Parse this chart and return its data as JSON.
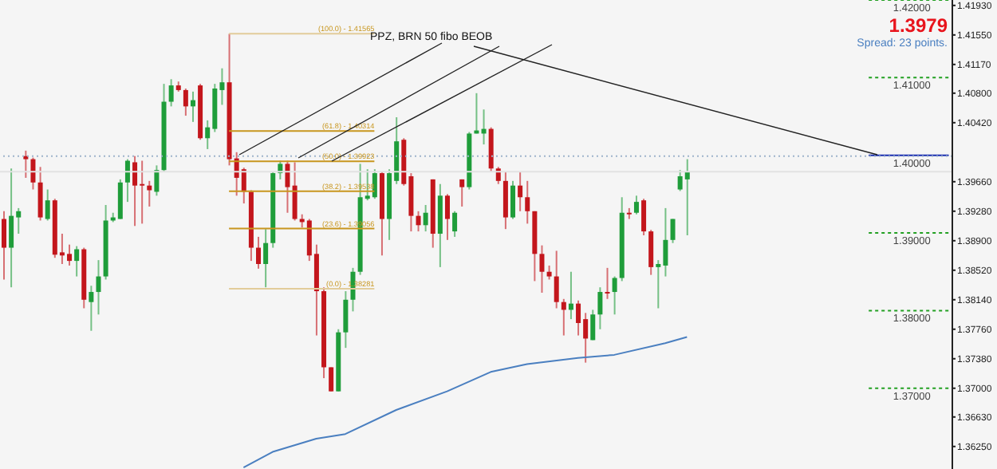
{
  "chart_data": {
    "type": "candlestick",
    "categories": [
      null,
      null,
      null,
      null,
      null,
      null,
      null,
      null,
      null,
      null,
      null,
      null,
      null,
      null,
      null,
      null,
      null,
      null,
      null,
      null,
      null,
      null,
      null,
      null,
      null,
      null,
      null,
      null,
      null,
      null,
      null,
      null,
      null,
      null,
      null,
      null,
      null,
      null,
      null,
      null,
      null,
      null,
      null,
      null,
      null,
      null,
      null,
      null,
      null,
      null,
      null,
      null,
      null,
      null,
      null,
      null,
      null,
      null,
      null,
      null,
      null,
      null,
      null,
      null,
      null,
      null,
      null,
      null,
      null,
      null,
      null,
      null,
      null,
      null,
      null,
      null,
      null,
      null,
      null,
      null,
      null,
      null,
      null,
      null,
      null,
      null,
      null,
      null,
      null,
      null,
      null,
      null,
      null,
      null,
      null,
      null,
      null,
      null,
      null,
      null,
      null,
      null,
      null,
      null,
      null,
      null,
      null,
      null,
      null,
      null,
      null,
      null,
      null,
      null,
      null,
      null,
      null,
      null,
      null,
      null,
      null,
      null,
      null,
      null,
      null,
      null,
      null,
      null,
      null,
      null,
      null
    ],
    "ohlc": [
      [
        1.3918,
        1.3928,
        1.384,
        1.3881
      ],
      [
        1.3881,
        1.3983,
        1.383,
        1.3922
      ],
      [
        1.392,
        1.3932,
        1.3899,
        1.3928
      ],
      [
        1.3999,
        1.4006,
        1.3971,
        1.3995
      ],
      [
        1.3995,
        1.3997,
        1.3956,
        1.3965
      ],
      [
        1.3965,
        1.3985,
        1.3916,
        1.392
      ],
      [
        1.3918,
        1.3956,
        1.3916,
        1.3942
      ],
      [
        1.3942,
        1.3944,
        1.3868,
        1.3872
      ],
      [
        1.3875,
        1.3899,
        1.386,
        1.3871
      ],
      [
        1.3873,
        1.3885,
        1.3858,
        1.3864
      ],
      [
        1.3864,
        1.3883,
        1.3844,
        1.3879
      ],
      [
        1.3879,
        1.3881,
        1.3803,
        1.3814
      ],
      [
        1.3811,
        1.3832,
        1.3774,
        1.3824
      ],
      [
        1.3824,
        1.3865,
        1.3795,
        1.3844
      ],
      [
        1.3844,
        1.3936,
        1.384,
        1.3916
      ],
      [
        1.3916,
        1.3926,
        1.3914,
        1.392
      ],
      [
        1.3918,
        1.3969,
        1.3918,
        1.3965
      ],
      [
        1.3965,
        1.3995,
        1.394,
        1.3993
      ],
      [
        1.3991,
        1.3999,
        1.3909,
        1.3961
      ],
      [
        1.3963,
        1.3993,
        1.3912,
        1.3961
      ],
      [
        1.3961,
        1.3967,
        1.3934,
        1.3955
      ],
      [
        1.3953,
        1.3987,
        1.3948,
        1.3981
      ],
      [
        1.3981,
        1.4092,
        1.3979,
        1.4069
      ],
      [
        1.4069,
        1.4098,
        1.4063,
        1.409
      ],
      [
        1.409,
        1.4095,
        1.4082,
        1.4084
      ],
      [
        1.4084,
        1.4086,
        1.4051,
        1.4063
      ],
      [
        1.4063,
        1.4082,
        1.4043,
        1.4071
      ],
      [
        1.409,
        1.4092,
        1.402,
        1.4022
      ],
      [
        1.4022,
        1.4045,
        1.4008,
        1.4036
      ],
      [
        1.4034,
        1.4092,
        1.403,
        1.4086
      ],
      [
        1.4084,
        1.4112,
        1.4065,
        1.4094
      ],
      [
        1.4094,
        1.41565,
        1.3987,
        1.3995
      ],
      [
        1.3996,
        1.4004,
        1.3948,
        1.3971
      ],
      [
        1.3982,
        1.3984,
        1.3938,
        1.3953
      ],
      [
        1.3953,
        1.3955,
        1.3864,
        1.3881
      ],
      [
        1.3881,
        1.3895,
        1.3854,
        1.386
      ],
      [
        1.386,
        1.3905,
        1.383,
        1.3887
      ],
      [
        1.3887,
        1.3979,
        1.3881,
        1.3977
      ],
      [
        1.3977,
        1.3993,
        1.3969,
        1.3989
      ],
      [
        1.3989,
        1.3993,
        1.3926,
        1.3959
      ],
      [
        1.3961,
        1.3991,
        1.3916,
        1.3918
      ],
      [
        1.3918,
        1.3924,
        1.3907,
        1.3914
      ],
      [
        1.3916,
        1.3918,
        1.3864,
        1.3871
      ],
      [
        1.3873,
        1.3885,
        1.3768,
        1.3825
      ],
      [
        1.3825,
        1.383,
        1.3713,
        1.3727
      ],
      [
        1.3727,
        1.3727,
        1.3696,
        1.3696
      ],
      [
        1.3696,
        1.3776,
        1.3696,
        1.3772
      ],
      [
        1.3772,
        1.3825,
        1.3752,
        1.3814
      ],
      [
        1.3814,
        1.3855,
        1.3799,
        1.385
      ],
      [
        1.385,
        1.3989,
        1.3846,
        1.3946
      ],
      [
        1.3944,
        1.3982,
        1.3942,
        1.3948
      ],
      [
        1.3946,
        1.3982,
        1.3944,
        1.3977
      ],
      [
        1.3977,
        1.3979,
        1.3871,
        1.3918
      ],
      [
        1.3918,
        1.3982,
        1.3891,
        1.3977
      ],
      [
        1.3967,
        1.4049,
        1.3963,
        1.4018
      ],
      [
        1.402,
        1.4022,
        1.3961,
        1.3963
      ],
      [
        1.3973,
        1.3977,
        1.3902,
        1.3922
      ],
      [
        1.3922,
        1.3928,
        1.3902,
        1.391
      ],
      [
        1.391,
        1.3936,
        1.3902,
        1.3926
      ],
      [
        1.3969,
        1.3969,
        1.3881,
        1.3899
      ],
      [
        1.3899,
        1.3963,
        1.3856,
        1.3948
      ],
      [
        1.3948,
        1.395,
        1.3891,
        1.3918
      ],
      [
        1.3902,
        1.3928,
        1.3895,
        1.3926
      ],
      [
        1.3969,
        1.3969,
        1.3934,
        1.3959
      ],
      [
        1.3959,
        1.403,
        1.3956,
        1.4028
      ],
      [
        1.4028,
        1.408,
        1.4028,
        1.4032
      ],
      [
        1.4028,
        1.4059,
        1.4014,
        1.4034
      ],
      [
        1.4034,
        1.4036,
        1.3979,
        1.3983
      ],
      [
        1.3983,
        1.3985,
        1.3963,
        1.3967
      ],
      [
        1.3967,
        1.3979,
        1.3905,
        1.392
      ],
      [
        1.392,
        1.3967,
        1.3918,
        1.3961
      ],
      [
        1.3961,
        1.3979,
        1.3928,
        1.3946
      ],
      [
        1.3946,
        1.3967,
        1.3912,
        1.3928
      ],
      [
        1.3928,
        1.3928,
        1.3838,
        1.3873
      ],
      [
        1.3873,
        1.3884,
        1.3823,
        1.385
      ],
      [
        1.385,
        1.3858,
        1.384,
        1.3844
      ],
      [
        1.3844,
        1.3877,
        1.3803,
        1.3811
      ],
      [
        1.3811,
        1.3815,
        1.3768,
        1.3801
      ],
      [
        1.3801,
        1.385,
        1.3789,
        1.3809
      ],
      [
        1.3809,
        1.3813,
        1.3768,
        1.3784
      ],
      [
        1.3789,
        1.3797,
        1.3733,
        1.3764
      ],
      [
        1.3762,
        1.3801,
        1.3762,
        1.3795
      ],
      [
        1.3795,
        1.383,
        1.3776,
        1.3824
      ],
      [
        1.3824,
        1.3855,
        1.3815,
        1.3822
      ],
      [
        1.3824,
        1.3844,
        1.3795,
        1.3842
      ],
      [
        1.3842,
        1.3946,
        1.3838,
        1.3926
      ],
      [
        1.3926,
        1.3932,
        1.3918,
        1.3924
      ],
      [
        1.3926,
        1.3948,
        1.3924,
        1.394
      ],
      [
        1.3942,
        1.3944,
        1.3897,
        1.3902
      ],
      [
        1.3902,
        1.3904,
        1.3846,
        1.3856
      ],
      [
        1.3856,
        1.3865,
        1.3803,
        1.386
      ],
      [
        1.3858,
        1.3932,
        1.3844,
        1.3891
      ],
      [
        1.3891,
        1.3918,
        1.3887,
        1.3918
      ],
      [
        1.3956,
        1.3981,
        1.3954,
        1.3973
      ],
      [
        1.3969,
        1.3995,
        1.3897,
        1.3979
      ],
      null,
      null,
      null,
      null,
      null,
      null,
      null,
      null,
      null,
      null,
      null,
      null,
      null,
      null,
      null,
      null,
      null,
      null,
      null,
      null,
      null,
      null,
      null,
      null,
      null,
      null,
      null,
      null,
      null,
      null,
      null,
      null,
      null,
      null,
      null,
      null
    ],
    "colors": [
      "#c3161c",
      "#1f9d3a",
      "#1f9d3a",
      "#c3161c",
      "#c3161c",
      "#c3161c",
      "#1f9d3a",
      "#c3161c",
      "#c3161c",
      "#c3161c",
      "#1f9d3a",
      "#c3161c",
      "#1f9d3a",
      "#1f9d3a",
      "#1f9d3a",
      "#1f9d3a",
      "#1f9d3a",
      "#1f9d3a",
      "#c3161c",
      "#c3161c",
      "#c3161c",
      "#1f9d3a",
      "#1f9d3a",
      "#1f9d3a",
      "#c3161c",
      "#c3161c",
      "#1f9d3a",
      "#c3161c",
      "#1f9d3a",
      "#1f9d3a",
      "#1f9d3a",
      "#c3161c",
      "#c3161c",
      "#c3161c",
      "#c3161c",
      "#c3161c",
      "#1f9d3a",
      "#1f9d3a",
      "#1f9d3a",
      "#c3161c",
      "#c3161c",
      "#c3161c",
      "#c3161c",
      "#c3161c",
      "#c3161c",
      "#c3161c",
      "#1f9d3a",
      "#1f9d3a",
      "#1f9d3a",
      "#1f9d3a",
      "#1f9d3a",
      "#1f9d3a",
      "#c3161c",
      "#1f9d3a",
      "#1f9d3a",
      "#c3161c",
      "#c3161c",
      "#c3161c",
      "#1f9d3a",
      "#c3161c",
      "#1f9d3a",
      "#c3161c",
      "#1f9d3a",
      "#c3161c",
      "#1f9d3a",
      "#1f9d3a",
      "#1f9d3a",
      "#c3161c",
      "#c3161c",
      "#c3161c",
      "#1f9d3a",
      "#c3161c",
      "#c3161c",
      "#c3161c",
      "#c3161c",
      "#c3161c",
      "#c3161c",
      "#c3161c",
      "#1f9d3a",
      "#c3161c",
      "#c3161c",
      "#1f9d3a",
      "#1f9d3a",
      "#c3161c",
      "#1f9d3a",
      "#1f9d3a",
      "#c3161c",
      "#1f9d3a",
      "#c3161c",
      "#c3161c",
      "#1f9d3a",
      "#1f9d3a",
      "#1f9d3a",
      "#1f9d3a",
      "#1f9d3a",
      null,
      null,
      null,
      null,
      null,
      null,
      null,
      null,
      null,
      null,
      null,
      null,
      null,
      null,
      null,
      null,
      null,
      null,
      null,
      null,
      null,
      null,
      null,
      null,
      null,
      null,
      null,
      null,
      null,
      null,
      null,
      null,
      null,
      null,
      null,
      null
    ],
    "series": [
      {
        "type": "line",
        "color": "#4a7fc0",
        "values": [
          null,
          null,
          null,
          null,
          null,
          null,
          null,
          null,
          null,
          null,
          null,
          null,
          null,
          null,
          null,
          null,
          null,
          null,
          null,
          null,
          null,
          null,
          null,
          null,
          null,
          null,
          null,
          null,
          null,
          null,
          null,
          null,
          null,
          1.3598,
          null,
          null,
          null,
          1.3618,
          null,
          null,
          null,
          null,
          null,
          1.3635,
          null,
          null,
          null,
          1.3641,
          null,
          null,
          null,
          null,
          null,
          null,
          1.3672,
          null,
          null,
          null,
          null,
          null,
          null,
          1.3696,
          null,
          null,
          null,
          null,
          null,
          1.3721,
          null,
          null,
          null,
          null,
          1.3731,
          null,
          null,
          null,
          null,
          null,
          null,
          1.3739,
          null,
          null,
          null,
          null,
          1.3743,
          null,
          null,
          null,
          null,
          null,
          null,
          1.3758,
          null,
          null,
          1.3766,
          null,
          null,
          null,
          null,
          null,
          null,
          null,
          null,
          null,
          null,
          null,
          null,
          null,
          null,
          null,
          null,
          null,
          null,
          null,
          null,
          null,
          null,
          null,
          null,
          null,
          null,
          null,
          null,
          null,
          null,
          null,
          null,
          null,
          null,
          null,
          null
        ]
      },
      {
        "type": "line",
        "name": "(100.0) - 1.41565",
        "color": "#e2cc9a",
        "values": [
          null,
          null,
          null,
          null,
          null,
          null,
          null,
          null,
          null,
          null,
          null,
          null,
          null,
          null,
          null,
          null,
          null,
          null,
          null,
          null,
          null,
          null,
          null,
          null,
          null,
          null,
          null,
          null,
          null,
          null,
          null,
          1.41565,
          null,
          null,
          null,
          null,
          null,
          null,
          null,
          null,
          null,
          null,
          null,
          null,
          null,
          null,
          null,
          null,
          null,
          null,
          null,
          1.41565,
          null,
          null,
          null,
          null,
          null,
          null,
          null,
          null,
          null,
          null,
          null,
          null,
          null,
          null,
          null,
          null,
          null,
          null,
          null,
          null,
          null,
          null,
          null,
          null,
          null,
          null,
          null,
          null,
          null,
          null,
          null,
          null,
          null,
          null,
          null,
          null,
          null,
          null,
          null,
          null,
          null,
          null,
          null,
          null,
          null,
          null,
          null,
          null,
          null,
          null,
          null,
          null,
          null,
          null,
          null,
          null,
          null,
          null,
          null,
          null,
          null,
          null,
          null,
          null,
          null,
          null,
          null,
          null,
          null,
          null,
          null,
          null,
          null,
          null,
          null,
          null,
          null,
          null,
          null
        ]
      },
      {
        "type": "line",
        "name": "(61.8) - 1.40314",
        "color": "#c8961e",
        "values": [
          null,
          null,
          null,
          null,
          null,
          null,
          null,
          null,
          null,
          null,
          null,
          null,
          null,
          null,
          null,
          null,
          null,
          null,
          null,
          null,
          null,
          null,
          null,
          null,
          null,
          null,
          null,
          null,
          null,
          null,
          null,
          1.40314,
          null,
          null,
          null,
          null,
          null,
          null,
          null,
          null,
          null,
          null,
          null,
          null,
          null,
          null,
          null,
          null,
          null,
          null,
          null,
          1.40314,
          null,
          null,
          null,
          null,
          null,
          null,
          null,
          null,
          null,
          null,
          null,
          null,
          null,
          null,
          null,
          null,
          null,
          null,
          null,
          null,
          null,
          null,
          null,
          null,
          null,
          null,
          null,
          null,
          null,
          null,
          null,
          null,
          null,
          null,
          null,
          null,
          null,
          null,
          null,
          null,
          null,
          null,
          null,
          null,
          null,
          null,
          null,
          null,
          null,
          null,
          null,
          null,
          null,
          null,
          null,
          null,
          null,
          null,
          null,
          null,
          null,
          null,
          null,
          null,
          null,
          null,
          null,
          null,
          null,
          null,
          null,
          null,
          null,
          null,
          null,
          null,
          null,
          null,
          null
        ]
      },
      {
        "type": "line",
        "name": "(50.0) - 1.39923",
        "color": "#c8961e",
        "values": [
          null,
          null,
          null,
          null,
          null,
          null,
          null,
          null,
          null,
          null,
          null,
          null,
          null,
          null,
          null,
          null,
          null,
          null,
          null,
          null,
          null,
          null,
          null,
          null,
          null,
          null,
          null,
          null,
          null,
          null,
          null,
          1.39923,
          null,
          null,
          null,
          null,
          null,
          null,
          null,
          null,
          null,
          null,
          null,
          null,
          null,
          null,
          null,
          null,
          null,
          null,
          null,
          1.39923,
          null,
          null,
          null,
          null,
          null,
          null,
          null,
          null,
          null,
          null,
          null,
          null,
          null,
          null,
          null,
          null,
          null,
          null,
          null,
          null,
          null,
          null,
          null,
          null,
          null,
          null,
          null,
          null,
          null,
          null,
          null,
          null,
          null,
          null,
          null,
          null,
          null,
          null,
          null,
          null,
          null,
          null,
          null,
          null,
          null,
          null,
          null,
          null,
          null,
          null,
          null,
          null,
          null,
          null,
          null,
          null,
          null,
          null,
          null,
          null,
          null,
          null,
          null,
          null,
          null,
          null,
          null,
          null,
          null,
          null,
          null,
          null,
          null,
          null,
          null,
          null,
          null,
          null,
          null
        ]
      },
      {
        "type": "line",
        "name": "(38.2) - 1.39538",
        "color": "#c8961e",
        "values": [
          null,
          null,
          null,
          null,
          null,
          null,
          null,
          null,
          null,
          null,
          null,
          null,
          null,
          null,
          null,
          null,
          null,
          null,
          null,
          null,
          null,
          null,
          null,
          null,
          null,
          null,
          null,
          null,
          null,
          null,
          null,
          1.39538,
          null,
          null,
          null,
          null,
          null,
          null,
          null,
          null,
          null,
          null,
          null,
          null,
          null,
          null,
          null,
          null,
          null,
          null,
          null,
          1.39538,
          null,
          null,
          null,
          null,
          null,
          null,
          null,
          null,
          null,
          null,
          null,
          null,
          null,
          null,
          null,
          null,
          null,
          null,
          null,
          null,
          null,
          null,
          null,
          null,
          null,
          null,
          null,
          null,
          null,
          null,
          null,
          null,
          null,
          null,
          null,
          null,
          null,
          null,
          null,
          null,
          null,
          null,
          null,
          null,
          null,
          null,
          null,
          null,
          null,
          null,
          null,
          null,
          null,
          null,
          null,
          null,
          null,
          null,
          null,
          null,
          null,
          null,
          null,
          null,
          null,
          null,
          null,
          null,
          null,
          null,
          null,
          null,
          null,
          null,
          null,
          null,
          null,
          null,
          null
        ]
      },
      {
        "type": "line",
        "name": "(23.6) - 1.39056",
        "color": "#c8961e",
        "values": [
          null,
          null,
          null,
          null,
          null,
          null,
          null,
          null,
          null,
          null,
          null,
          null,
          null,
          null,
          null,
          null,
          null,
          null,
          null,
          null,
          null,
          null,
          null,
          null,
          null,
          null,
          null,
          null,
          null,
          null,
          null,
          1.39056,
          null,
          null,
          null,
          null,
          null,
          null,
          null,
          null,
          null,
          null,
          null,
          null,
          null,
          null,
          null,
          null,
          null,
          null,
          null,
          1.39056,
          null,
          null,
          null,
          null,
          null,
          null,
          null,
          null,
          null,
          null,
          null,
          null,
          null,
          null,
          null,
          null,
          null,
          null,
          null,
          null,
          null,
          null,
          null,
          null,
          null,
          null,
          null,
          null,
          null,
          null,
          null,
          null,
          null,
          null,
          null,
          null,
          null,
          null,
          null,
          null,
          null,
          null,
          null,
          null,
          null,
          null,
          null,
          null,
          null,
          null,
          null,
          null,
          null,
          null,
          null,
          null,
          null,
          null,
          null,
          null,
          null,
          null,
          null,
          null,
          null,
          null,
          null,
          null,
          null,
          null,
          null,
          null,
          null,
          null,
          null,
          null,
          null,
          null,
          null
        ]
      },
      {
        "type": "line",
        "name": "(0.0) - 1.38281",
        "color": "#e2cc9a",
        "values": [
          null,
          null,
          null,
          null,
          null,
          null,
          null,
          null,
          null,
          null,
          null,
          null,
          null,
          null,
          null,
          null,
          null,
          null,
          null,
          null,
          null,
          null,
          null,
          null,
          null,
          null,
          null,
          null,
          null,
          null,
          null,
          1.38281,
          null,
          null,
          null,
          null,
          null,
          null,
          null,
          null,
          null,
          null,
          null,
          null,
          null,
          null,
          null,
          null,
          null,
          null,
          null,
          1.38281,
          null,
          null,
          null,
          null,
          null,
          null,
          null,
          null,
          null,
          null,
          null,
          null,
          null,
          null,
          null,
          null,
          null,
          null,
          null,
          null,
          null,
          null,
          null,
          null,
          null,
          null,
          null,
          null,
          null,
          null,
          null,
          null,
          null,
          null,
          null,
          null,
          null,
          null,
          null,
          null,
          null,
          null,
          null,
          null,
          null,
          null,
          null,
          null,
          null,
          null,
          null,
          null,
          null,
          null,
          null,
          null,
          null,
          null,
          null,
          null,
          null,
          null,
          null,
          null,
          null,
          null,
          null,
          null,
          null,
          null,
          null,
          null,
          null,
          null,
          null,
          null,
          null,
          null,
          null
        ]
      }
    ],
    "ylim": [
      1.3596,
      1.42
    ],
    "yticks": [
      {
        "value": 1.4193,
        "label": "1.41930"
      },
      {
        "value": 1.4155,
        "label": "1.41550"
      },
      {
        "value": 1.4117,
        "label": "1.41170"
      },
      {
        "value": 1.408,
        "label": "1.40800"
      },
      {
        "value": 1.4042,
        "label": "1.40420"
      },
      {
        "value": 1.3966,
        "label": "1.39660"
      },
      {
        "value": 1.3928,
        "label": "1.39280"
      },
      {
        "value": 1.389,
        "label": "1.38900"
      },
      {
        "value": 1.3852,
        "label": "1.38520"
      },
      {
        "value": 1.3814,
        "label": "1.38140"
      },
      {
        "value": 1.3776,
        "label": "1.37760"
      },
      {
        "value": 1.3738,
        "label": "1.37380"
      },
      {
        "value": 1.37,
        "label": "1.37000"
      },
      {
        "value": 1.3663,
        "label": "1.36630"
      },
      {
        "value": 1.3625,
        "label": "1.36250"
      }
    ],
    "tick_labels": "y",
    "ref_lines": [
      {
        "axis": "y",
        "value": 1.42,
        "label": "1.42000",
        "color": "#22a022",
        "line_style": "dashed"
      },
      {
        "axis": "y",
        "value": 1.41,
        "label": "1.41000",
        "color": "#22a022",
        "line_style": "dashed"
      },
      {
        "axis": "y",
        "value": 1.4,
        "label": "1.40000",
        "color": "#1a2fb0",
        "line_style": "solid"
      },
      {
        "axis": "y",
        "value": 1.39,
        "label": "1.39000",
        "color": "#22a022",
        "line_style": "dashed"
      },
      {
        "axis": "y",
        "value": 1.38,
        "label": "1.38000",
        "color": "#22a022",
        "line_style": "dashed"
      },
      {
        "axis": "y",
        "value": 1.37,
        "label": "1.37000",
        "color": "#22a022",
        "line_style": "dashed"
      },
      {
        "axis": "y",
        "value": 1.3999,
        "color": "#9fb4cc",
        "line_style": "dotted"
      },
      {
        "axis": "y",
        "value": 1.3979,
        "color": "#e2e2e2",
        "line_style": "solid"
      }
    ],
    "annotations": [
      "PPZ, BRN 50 fibo BEOB",
      "1.3979",
      "Spread: 23 points."
    ]
  }
}
